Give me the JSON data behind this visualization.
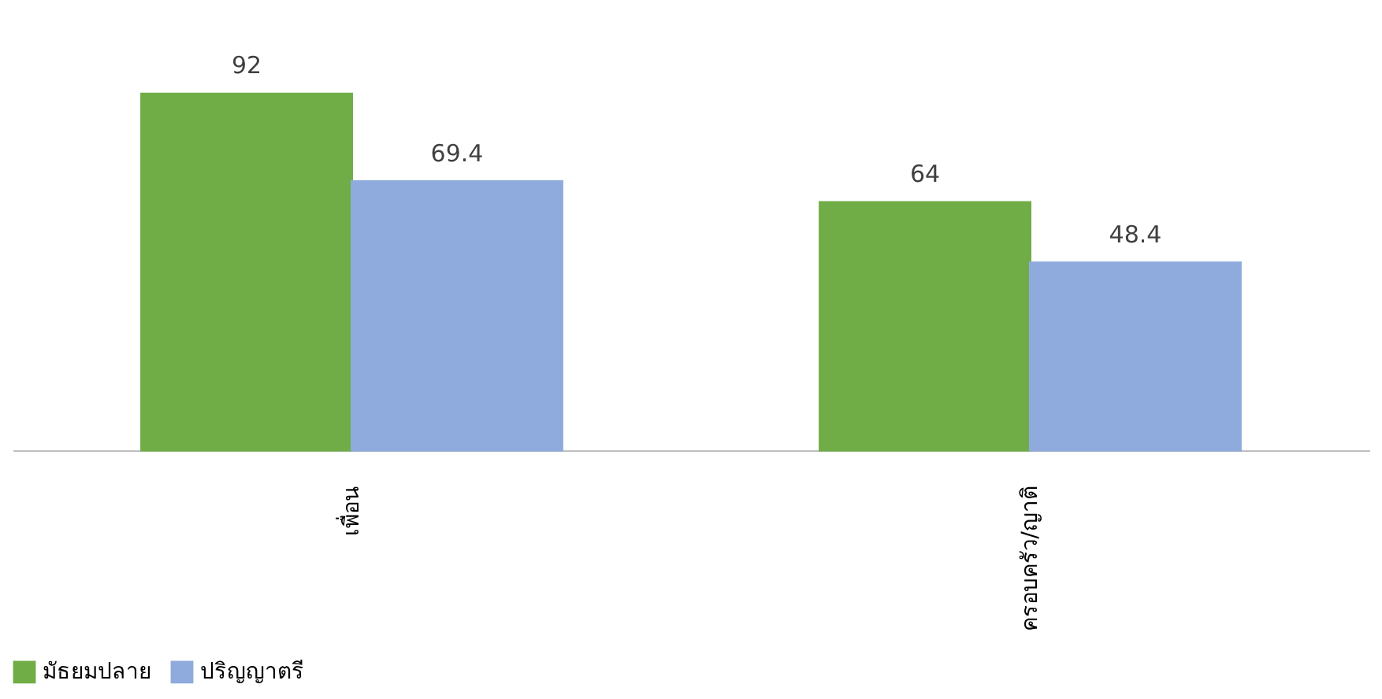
{
  "chart_data": {
    "type": "bar",
    "categories": [
      "เพื่อน",
      "ครอบครัว/ญาติ"
    ],
    "series": [
      {
        "name": "มัธยมปลาย",
        "color": "#70ad47",
        "values": [
          92,
          64
        ]
      },
      {
        "name": "ปริญญาตรี",
        "color": "#8faadc",
        "values": [
          69.4,
          48.4
        ]
      }
    ],
    "data_labels": true,
    "legend": "bottom",
    "grid": false
  }
}
